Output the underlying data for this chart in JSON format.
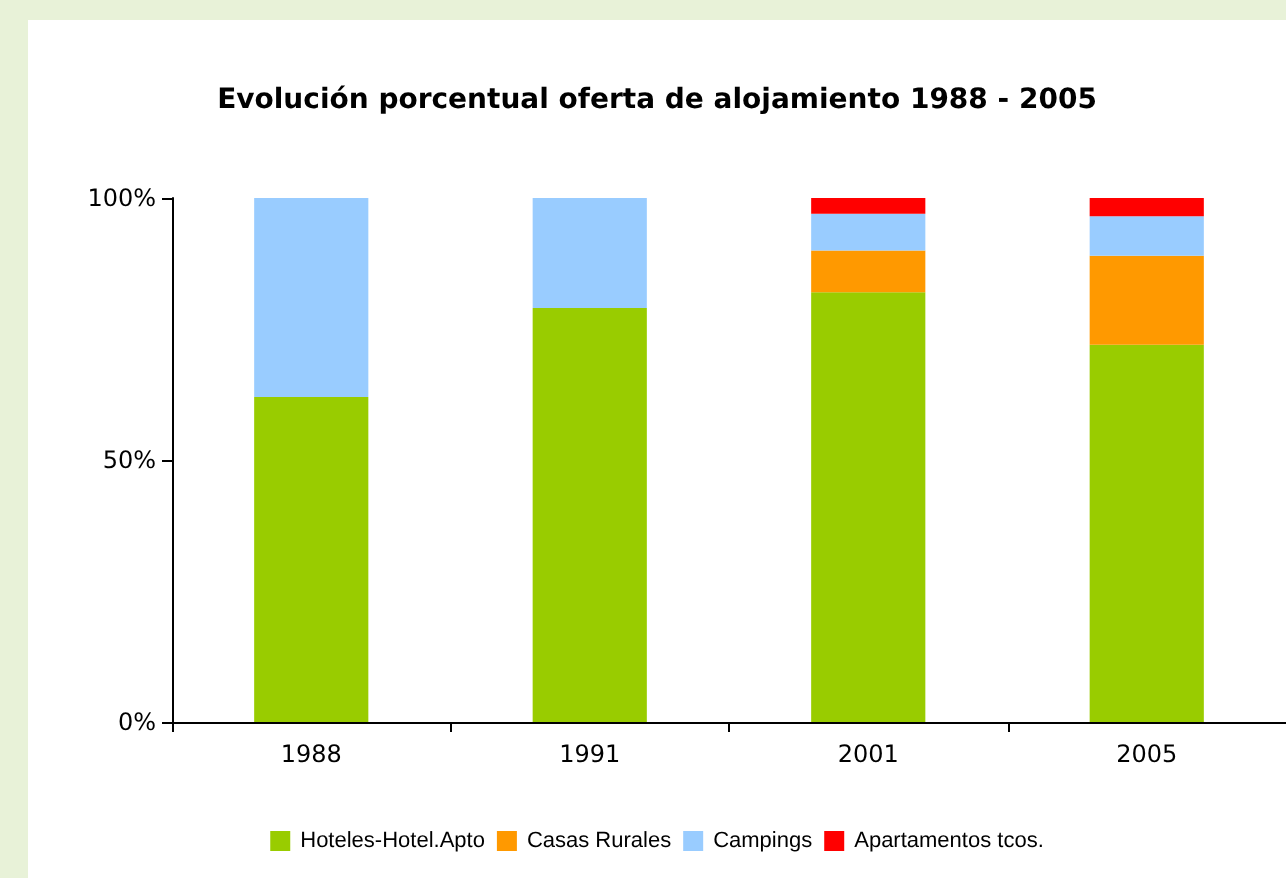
{
  "chart_data": {
    "type": "bar",
    "stacked": true,
    "title": "Evolución porcentual oferta de alojamiento 1988 - 2005",
    "categories": [
      "1988",
      "1991",
      "2001",
      "2005"
    ],
    "series": [
      {
        "name": "Hoteles-Hotel.Apto",
        "color": "#99cc00",
        "values": [
          62,
          79,
          82,
          72
        ]
      },
      {
        "name": "Casas Rurales",
        "color": "#ff9900",
        "values": [
          0,
          0,
          8,
          17
        ]
      },
      {
        "name": "Campings",
        "color": "#99ccff",
        "values": [
          38,
          21,
          7,
          7.5
        ]
      },
      {
        "name": "Apartamentos tcos.",
        "color": "#ff0000",
        "values": [
          0,
          0,
          3,
          3.5
        ]
      }
    ],
    "ylim": [
      0,
      100
    ],
    "yticks": [
      {
        "value": 0,
        "label": "0%"
      },
      {
        "value": 50,
        "label": "50%"
      },
      {
        "value": 100,
        "label": "100%"
      }
    ],
    "grid": false,
    "legend": "bottom"
  }
}
